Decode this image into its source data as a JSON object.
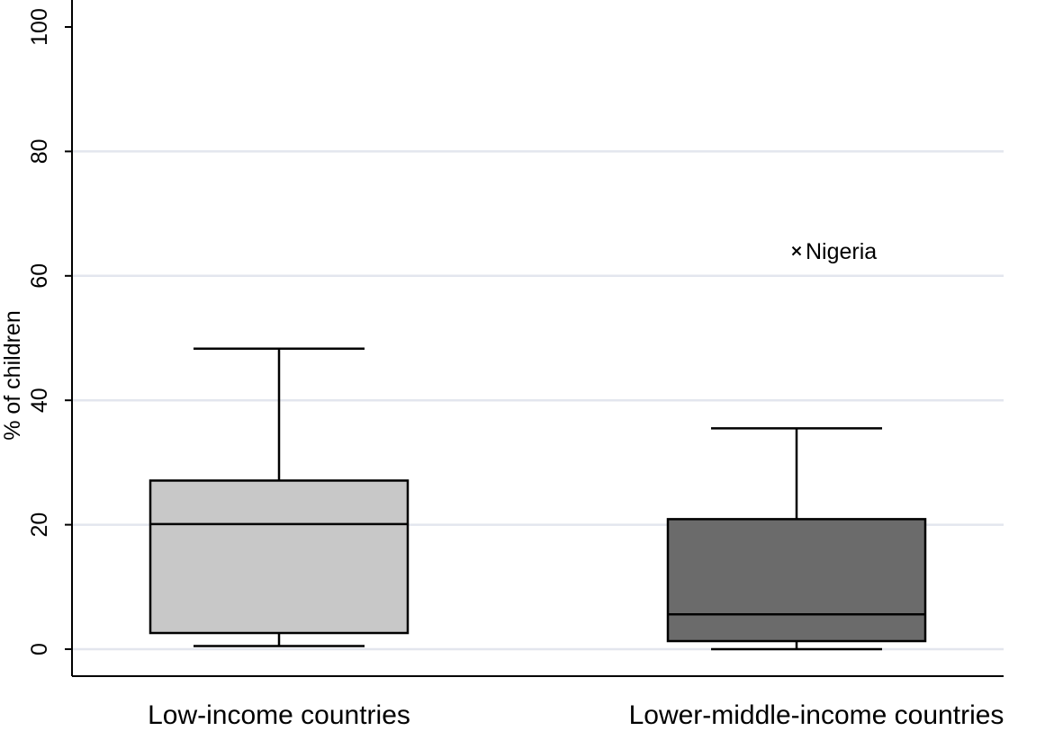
{
  "chart_data": {
    "type": "box",
    "ylabel": "% of children",
    "ylim": [
      0,
      100
    ],
    "yticks": [
      0,
      20,
      40,
      60,
      80,
      100
    ],
    "grid": true,
    "categories": [
      "Low-income countries",
      "Lower-middle-income countries"
    ],
    "boxes": [
      {
        "category": "Low-income countries",
        "whisker_low": 0.5,
        "q1": 2.6,
        "median": 20.1,
        "q3": 27.1,
        "whisker_high": 48.3,
        "fill": "#c8c8c8",
        "outliers": []
      },
      {
        "category": "Lower-middle-income countries",
        "whisker_low": 0.0,
        "q1": 1.3,
        "median": 5.6,
        "q3": 20.9,
        "whisker_high": 35.5,
        "fill": "#6b6b6b",
        "outliers": [
          {
            "label": "Nigeria",
            "value": 64.0
          }
        ]
      }
    ],
    "colors": {
      "grid": "#e3e6ee",
      "axis": "#000000",
      "stroke": "#000000"
    }
  }
}
